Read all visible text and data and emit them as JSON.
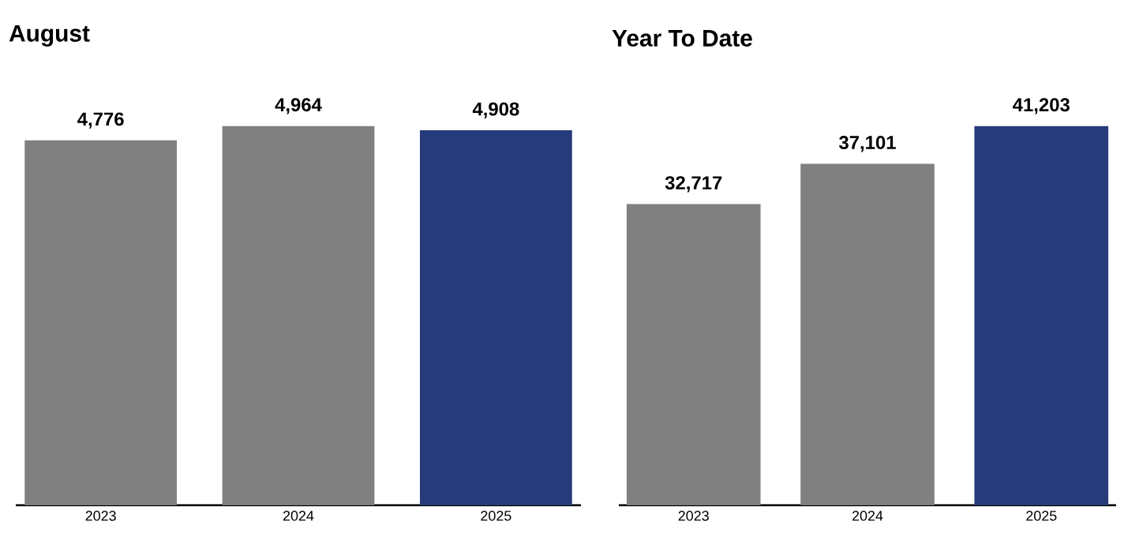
{
  "chart_data": [
    {
      "type": "bar",
      "title": "August",
      "categories": [
        "2023",
        "2024",
        "2025"
      ],
      "values": [
        4776,
        4964,
        4908
      ],
      "colors": [
        "#808080",
        "#808080",
        "#253b7a"
      ],
      "value_labels": [
        "4,776",
        "4,964",
        "4,908"
      ]
    },
    {
      "type": "bar",
      "title": "Year To Date",
      "categories": [
        "2023",
        "2024",
        "2025"
      ],
      "values": [
        32717,
        37101,
        41203
      ],
      "colors": [
        "#808080",
        "#808080",
        "#253b7a"
      ],
      "value_labels": [
        "32,717",
        "37,101",
        "41,203"
      ]
    }
  ]
}
